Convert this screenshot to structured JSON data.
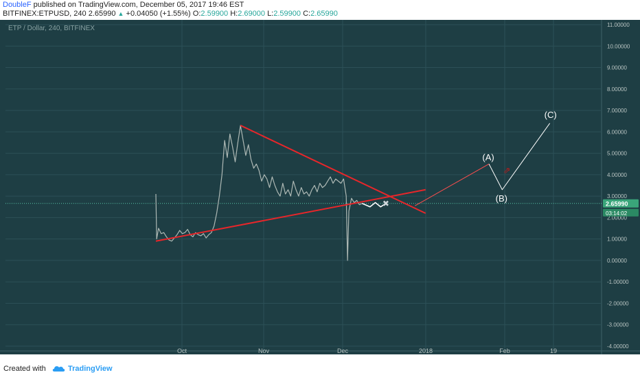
{
  "header": {
    "author": "DoubleF",
    "published_text": " published on TradingView.com, December 05, 2017 19:46 EST",
    "symbol": "BITFINEX:ETPUSD, 240",
    "price": "2.65990",
    "change": "+0.04050 (+1.55%)",
    "o_label": "O:",
    "o_value": "2.59900",
    "h_label": "H:",
    "h_value": "2.69000",
    "l_label": "L:",
    "l_value": "2.59900",
    "c_label": "C:",
    "c_value": "2.65990"
  },
  "colors": {
    "background": "#1e3e44",
    "grid": "#2c5057",
    "candle": "#aeb9b5",
    "trendline": "#e8262a",
    "projection": "#ffffff",
    "projection_red": "#ff4e4e",
    "price_badge": "#3aa57a",
    "axis_text": "#b9c4c2"
  },
  "chart_data": {
    "type": "line",
    "title": "ETP / Dollar, 240, BITFINEX",
    "x_labels": [
      "Oct",
      "Nov",
      "Dec",
      "2018",
      "Feb",
      "19"
    ],
    "y_ticks": [
      "11.00000",
      "10.00000",
      "9.00000",
      "8.00000",
      "7.00000",
      "6.00000",
      "5.00000",
      "4.00000",
      "3.00000",
      "2.00000",
      "1.00000",
      "0.00000",
      "-1.00000",
      "-2.00000",
      "-3.00000",
      "-4.00000"
    ],
    "ylim": [
      -4,
      11
    ],
    "last_price": "2.65990",
    "countdown": "03:14:02",
    "series": [
      {
        "values": [
          [
            0,
            3.1
          ],
          [
            0.3,
            1.0
          ],
          [
            1,
            1.5
          ],
          [
            2,
            1.25
          ],
          [
            3,
            1.3
          ],
          [
            4,
            1.1
          ],
          [
            5,
            0.95
          ],
          [
            6,
            0.9
          ],
          [
            7,
            1.05
          ],
          [
            8,
            1.2
          ],
          [
            9,
            1.4
          ],
          [
            10,
            1.25
          ],
          [
            11,
            1.3
          ],
          [
            12,
            1.45
          ],
          [
            13,
            1.2
          ],
          [
            14,
            1.1
          ],
          [
            15,
            1.3
          ],
          [
            16,
            1.2
          ],
          [
            17,
            1.15
          ],
          [
            18,
            1.25
          ],
          [
            19,
            1.05
          ],
          [
            20,
            1.2
          ],
          [
            21,
            1.3
          ],
          [
            22,
            1.6
          ],
          [
            23,
            2.2
          ],
          [
            24,
            3.0
          ],
          [
            25,
            4.0
          ],
          [
            26,
            5.6
          ],
          [
            27,
            4.8
          ],
          [
            28,
            5.9
          ],
          [
            29,
            5.3
          ],
          [
            30,
            4.6
          ],
          [
            31,
            5.5
          ],
          [
            32,
            6.3
          ],
          [
            33,
            5.6
          ],
          [
            34,
            4.9
          ],
          [
            35,
            5.4
          ],
          [
            36,
            4.7
          ],
          [
            37,
            4.3
          ],
          [
            38,
            4.5
          ],
          [
            39,
            4.2
          ],
          [
            40,
            3.7
          ],
          [
            41,
            4.0
          ],
          [
            42,
            3.8
          ],
          [
            43,
            3.4
          ],
          [
            44,
            3.9
          ],
          [
            45,
            3.5
          ],
          [
            46,
            3.2
          ],
          [
            47,
            3.0
          ],
          [
            48,
            3.6
          ],
          [
            49,
            3.1
          ],
          [
            50,
            3.3
          ],
          [
            51,
            3.0
          ],
          [
            52,
            3.7
          ],
          [
            53,
            3.3
          ],
          [
            54,
            3.0
          ],
          [
            55,
            3.4
          ],
          [
            56,
            3.1
          ],
          [
            57,
            3.2
          ],
          [
            58,
            3.0
          ],
          [
            59,
            3.3
          ],
          [
            60,
            3.5
          ],
          [
            61,
            3.2
          ],
          [
            62,
            3.6
          ],
          [
            63,
            3.4
          ],
          [
            64,
            3.5
          ],
          [
            65,
            3.7
          ],
          [
            66,
            3.9
          ],
          [
            67,
            3.6
          ],
          [
            68,
            3.8
          ],
          [
            69,
            3.7
          ],
          [
            70,
            3.6
          ],
          [
            71,
            3.8
          ],
          [
            72,
            3.0
          ],
          [
            72.5,
            0.0
          ],
          [
            73,
            2.3
          ],
          [
            74,
            2.9
          ],
          [
            75,
            2.7
          ],
          [
            76,
            2.8
          ],
          [
            77,
            2.6
          ],
          [
            78,
            2.66
          ]
        ]
      },
      {
        "values": [
          [
            78,
            2.66
          ],
          [
            81,
            2.5
          ],
          [
            83,
            2.7
          ],
          [
            85,
            2.5
          ],
          [
            87,
            2.66
          ]
        ]
      },
      {
        "values": [
          [
            0,
            0.9
          ],
          [
            102,
            3.3
          ]
        ]
      },
      {
        "values": [
          [
            32,
            6.3
          ],
          [
            102,
            2.2
          ]
        ]
      },
      {
        "values": [
          [
            98,
            2.55
          ],
          [
            126,
            4.5
          ]
        ]
      },
      {
        "values": [
          [
            126,
            4.5
          ],
          [
            131,
            3.3
          ],
          [
            149,
            6.4
          ]
        ]
      }
    ],
    "annotations": [
      "(A)",
      "(B)",
      "(C)"
    ]
  },
  "footer": {
    "created_with": "Created with",
    "brand": "TradingView"
  }
}
